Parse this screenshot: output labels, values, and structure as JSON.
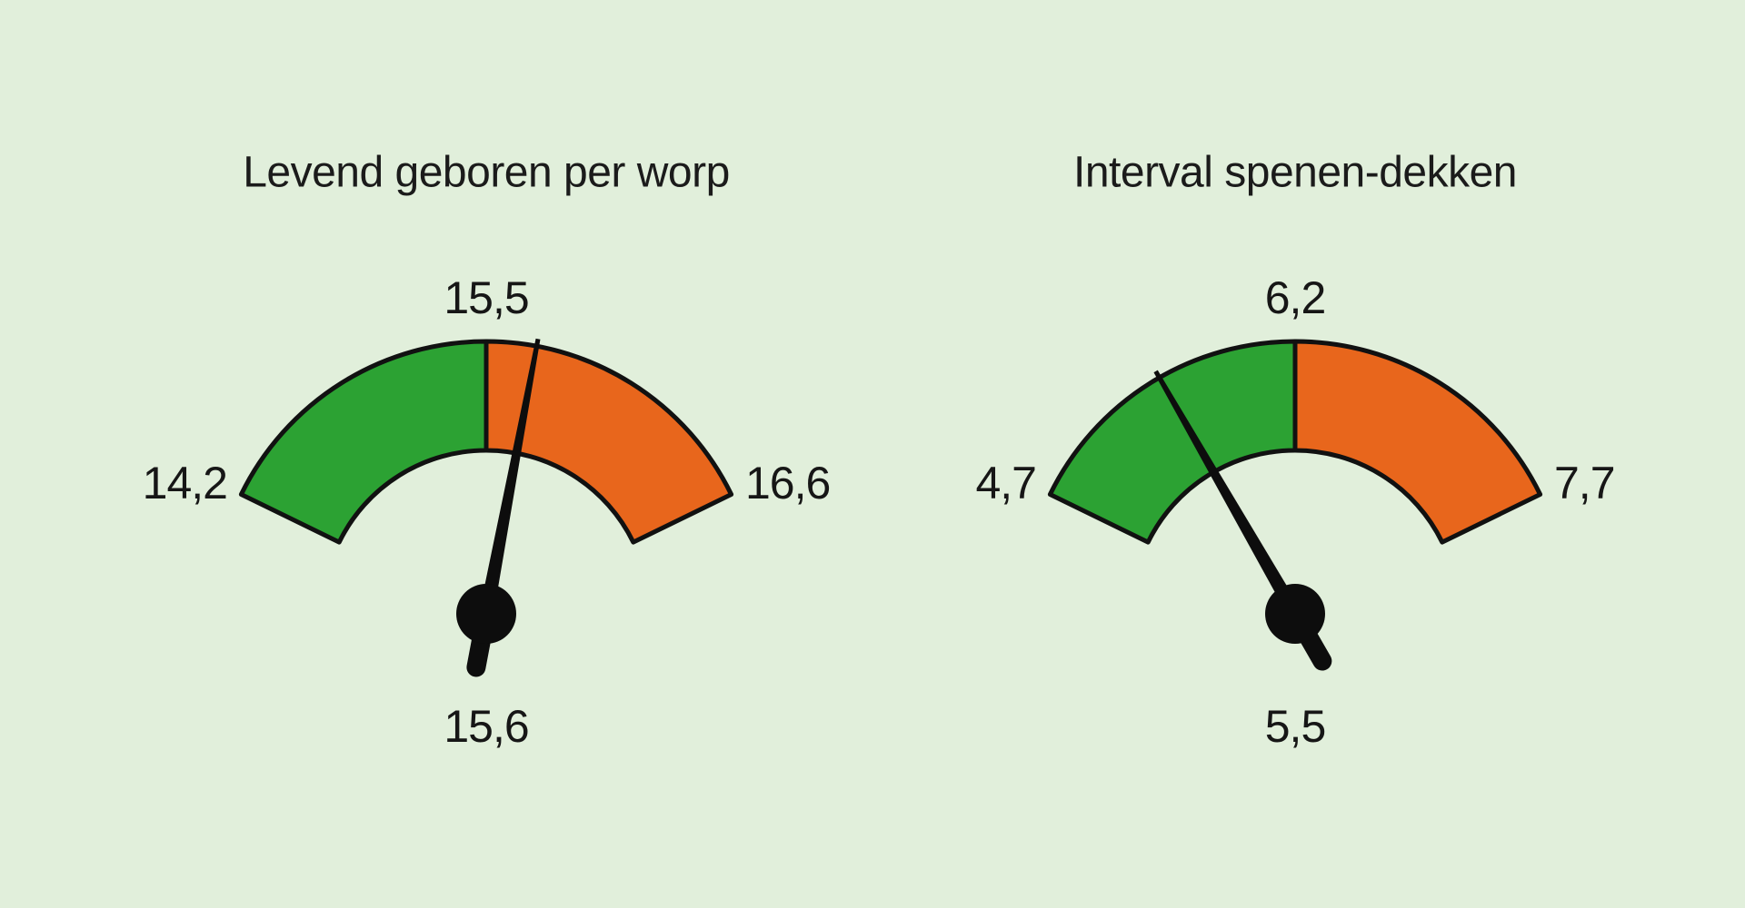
{
  "background_color": "#E1EFDB",
  "colors": {
    "green": "#2CA233",
    "orange": "#E8661C",
    "outline": "#111111",
    "needle": "#0D0D0D",
    "text": "#1B1B1B"
  },
  "gauges": [
    {
      "title": "Levend geboren per worp",
      "min": 14.2,
      "threshold": 15.5,
      "max": 16.6,
      "value": 15.6,
      "min_label": "14,2",
      "threshold_label": "15,5",
      "max_label": "16,6",
      "value_label": "15,6"
    },
    {
      "title": "Interval spenen-dekken",
      "min": 4.7,
      "threshold": 6.2,
      "max": 7.7,
      "value": 5.5,
      "min_label": "4,7",
      "threshold_label": "6,2",
      "max_label": "7,7",
      "value_label": "5,5"
    }
  ],
  "chart_data": [
    {
      "type": "gauge",
      "title": "Levend geboren per worp",
      "min": 14.2,
      "max": 16.6,
      "threshold": 15.5,
      "value": 15.6,
      "tick_labels": [
        "14,2",
        "15,5",
        "16,6"
      ],
      "value_label": "15,6",
      "segments": [
        {
          "from": 14.2,
          "to": 15.5,
          "color": "#2CA233",
          "name": "green"
        },
        {
          "from": 15.5,
          "to": 16.6,
          "color": "#E8661C",
          "name": "orange"
        }
      ],
      "legend": "none",
      "grid": false
    },
    {
      "type": "gauge",
      "title": "Interval spenen-dekken",
      "min": 4.7,
      "max": 7.7,
      "threshold": 6.2,
      "value": 5.5,
      "tick_labels": [
        "4,7",
        "6,2",
        "7,7"
      ],
      "value_label": "5,5",
      "segments": [
        {
          "from": 4.7,
          "to": 6.2,
          "color": "#2CA233",
          "name": "green"
        },
        {
          "from": 6.2,
          "to": 7.7,
          "color": "#E8661C",
          "name": "orange"
        }
      ],
      "legend": "none",
      "grid": false
    }
  ]
}
